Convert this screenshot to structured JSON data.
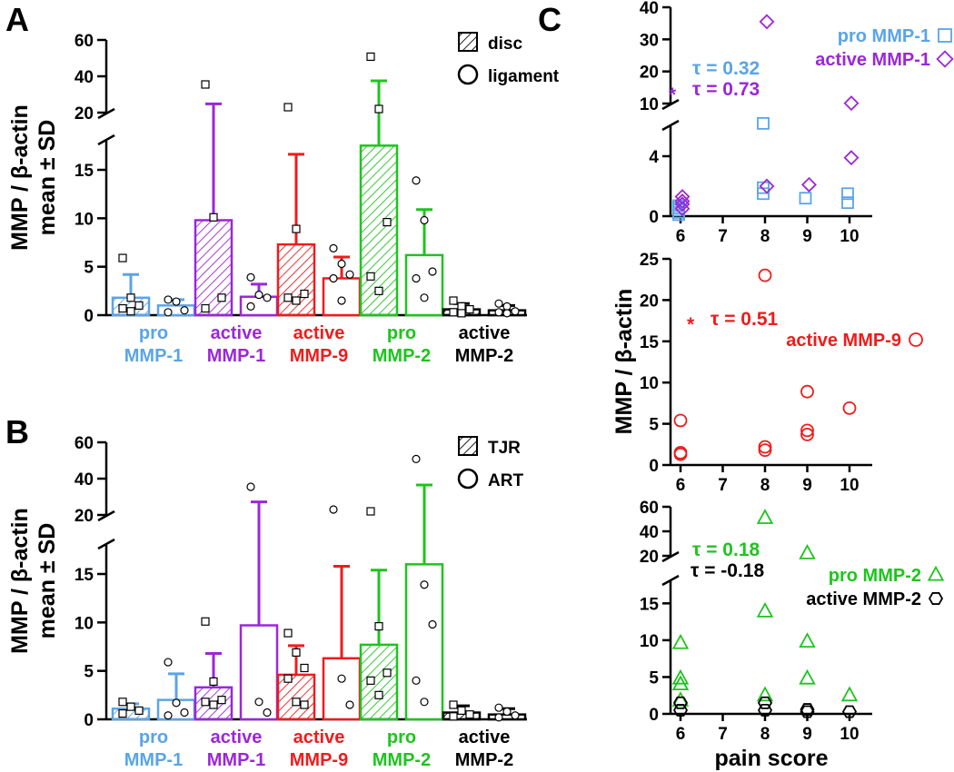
{
  "chart_data": [
    {
      "panel": "A",
      "type": "bar",
      "ylabel": "MMP / β-actin",
      "ylabel_sub": "mean ± SD",
      "y_ticks_low": [
        "0",
        "5",
        "10",
        "15"
      ],
      "y_ticks_high": [
        "20",
        "40",
        "60"
      ],
      "legend": [
        {
          "symbol": "hatch",
          "label": "disc"
        },
        {
          "symbol": "circle",
          "label": "ligament"
        }
      ],
      "groups": [
        {
          "line1": "pro",
          "line2": "MMP-1",
          "color": "#5aa4e8",
          "bars": [
            {
              "kind": "disc",
              "mean": 1.8,
              "sd": 2.4,
              "points": [
                5.9,
                1.8,
                1.0,
                0.7,
                0.4
              ]
            },
            {
              "kind": "ligament",
              "mean": 1.0,
              "sd": 0.6,
              "points": [
                1.6,
                1.4,
                0.5,
                0.3
              ]
            }
          ]
        },
        {
          "line1": "active",
          "line2": "MMP-1",
          "color": "#9b27d8",
          "bars": [
            {
              "kind": "disc",
              "mean": 9.8,
              "sd": 15.0,
              "points": [
                35.5,
                10.1,
                1.8,
                0.7
              ]
            },
            {
              "kind": "ligament",
              "mean": 1.9,
              "sd": 1.3,
              "points": [
                3.9,
                2.1,
                1.8,
                0.9
              ]
            }
          ]
        },
        {
          "line1": "active",
          "line2": "MMP-9",
          "color": "#ee1c1c",
          "bars": [
            {
              "kind": "disc",
              "mean": 7.3,
              "sd": 9.3,
              "points": [
                23.0,
                8.9,
                2.2,
                1.8,
                1.5
              ]
            },
            {
              "kind": "ligament",
              "mean": 3.8,
              "sd": 2.2,
              "points": [
                6.9,
                5.3,
                4.2,
                3.8,
                1.5
              ]
            }
          ]
        },
        {
          "line1": "pro",
          "line2": "MMP-2",
          "color": "#1ec41e",
          "bars": [
            {
              "kind": "disc",
              "mean": 17.5,
              "sd": 20.0,
              "points": [
                50.8,
                22.0,
                9.6,
                4.0,
                2.5
              ]
            },
            {
              "kind": "ligament",
              "mean": 6.2,
              "sd": 4.7,
              "points": [
                13.9,
                9.8,
                4.5,
                3.8,
                1.8
              ]
            }
          ]
        },
        {
          "line1": "active",
          "line2": "MMP-2",
          "color": "#000000",
          "bars": [
            {
              "kind": "disc",
              "mean": 0.6,
              "sd": 0.6,
              "points": [
                1.5,
                0.9,
                0.6,
                0.3,
                0.2
              ]
            },
            {
              "kind": "ligament",
              "mean": 0.5,
              "sd": 0.5,
              "points": [
                1.2,
                0.9,
                0.4,
                0.3,
                0.2
              ]
            }
          ]
        }
      ]
    },
    {
      "panel": "B",
      "type": "bar",
      "ylabel": "MMP / β-actin",
      "ylabel_sub": "mean ± SD",
      "y_ticks_low": [
        "0",
        "5",
        "10",
        "15"
      ],
      "y_ticks_high": [
        "20",
        "40",
        "60"
      ],
      "legend": [
        {
          "symbol": "hatch",
          "label": "TJR"
        },
        {
          "symbol": "circle",
          "label": "ART"
        }
      ],
      "groups": [
        {
          "line1": "pro",
          "line2": "MMP-1",
          "color": "#5aa4e8",
          "bars": [
            {
              "kind": "TJR",
              "mean": 1.1,
              "sd": 0.5,
              "points": [
                1.8,
                1.3,
                0.9,
                0.6
              ]
            },
            {
              "kind": "ART",
              "mean": 2.0,
              "sd": 2.7,
              "points": [
                5.9,
                1.7,
                0.7,
                0.4
              ]
            }
          ]
        },
        {
          "line1": "active",
          "line2": "MMP-1",
          "color": "#9b27d8",
          "bars": [
            {
              "kind": "TJR",
              "mean": 3.3,
              "sd": 3.5,
              "points": [
                10.1,
                3.9,
                2.0,
                1.8,
                1.5
              ]
            },
            {
              "kind": "ART",
              "mean": 9.7,
              "sd": 17.5,
              "points": [
                35.5,
                1.8,
                0.7
              ]
            }
          ]
        },
        {
          "line1": "active",
          "line2": "MMP-9",
          "color": "#ee1c1c",
          "bars": [
            {
              "kind": "TJR",
              "mean": 4.6,
              "sd": 3.0,
              "points": [
                8.9,
                6.9,
                5.3,
                4.2,
                1.8,
                1.5
              ]
            },
            {
              "kind": "ART",
              "mean": 6.3,
              "sd": 9.5,
              "points": [
                23.0,
                4.2,
                1.5
              ]
            }
          ]
        },
        {
          "line1": "pro",
          "line2": "MMP-2",
          "color": "#1ec41e",
          "bars": [
            {
              "kind": "TJR",
              "mean": 7.7,
              "sd": 7.7,
              "points": [
                22.0,
                9.6,
                4.8,
                4.0,
                2.5
              ]
            },
            {
              "kind": "ART",
              "mean": 16.0,
              "sd": 20.5,
              "points": [
                50.8,
                13.9,
                9.8,
                4.0,
                1.8
              ]
            }
          ]
        },
        {
          "line1": "active",
          "line2": "MMP-2",
          "color": "#000000",
          "bars": [
            {
              "kind": "TJR",
              "mean": 0.7,
              "sd": 0.7,
              "points": [
                1.5,
                0.9,
                0.5,
                0.3
              ]
            },
            {
              "kind": "ART",
              "mean": 0.5,
              "sd": 0.6,
              "points": [
                1.2,
                0.8,
                0.4,
                0.2
              ]
            }
          ]
        }
      ]
    },
    {
      "panel": "C",
      "type": "scatter",
      "xlabel": "pain score",
      "ylabel": "MMP / β-actin",
      "x_ticks": [
        "6",
        "7",
        "8",
        "9",
        "10"
      ],
      "subplots": [
        {
          "y_ticks_low": [
            "0",
            "4"
          ],
          "y_ticks_high": [
            "10",
            "20",
            "30",
            "40"
          ],
          "series": [
            {
              "name": "pro MMP-1",
              "marker": "square",
              "color": "#5aa4e8",
              "points": [
                [
                  6,
                  0.1
                ],
                [
                  6,
                  0.25
                ],
                [
                  6,
                  0.4
                ],
                [
                  6,
                  0.55
                ],
                [
                  6,
                  0.7
                ],
                [
                  8,
                  6.5
                ],
                [
                  8,
                  1.9
                ],
                [
                  8,
                  1.5
                ],
                [
                  9,
                  1.2
                ],
                [
                  10,
                  1.5
                ],
                [
                  10,
                  0.9
                ]
              ]
            },
            {
              "name": "active MMP-1",
              "marker": "diamond",
              "color": "#9b27d8",
              "points": [
                [
                  6,
                  1.3
                ],
                [
                  6,
                  1.0
                ],
                [
                  6,
                  0.8
                ],
                [
                  6,
                  0.5
                ],
                [
                  8,
                  35.5
                ],
                [
                  8,
                  2.0
                ],
                [
                  9,
                  2.1
                ],
                [
                  10,
                  10.1
                ],
                [
                  10,
                  3.9
                ]
              ]
            }
          ],
          "annotations": [
            {
              "text": "τ = 0.32",
              "color": "#5aa4e8",
              "star": false
            },
            {
              "text": "τ = 0.73",
              "color": "#9b27d8",
              "star": true
            }
          ]
        },
        {
          "y_ticks": [
            "0",
            "5",
            "10",
            "15",
            "20",
            "25"
          ],
          "series": [
            {
              "name": "active MMP-9",
              "marker": "circle",
              "color": "#ee1c1c",
              "points": [
                [
                  6,
                  5.4
                ],
                [
                  6,
                  1.5
                ],
                [
                  6,
                  1.3
                ],
                [
                  8,
                  23.0
                ],
                [
                  8,
                  2.2
                ],
                [
                  8,
                  1.8
                ],
                [
                  9,
                  8.9
                ],
                [
                  9,
                  4.2
                ],
                [
                  9,
                  3.7
                ],
                [
                  10,
                  6.9
                ]
              ]
            }
          ],
          "annotations": [
            {
              "text": "τ = 0.51",
              "color": "#ee1c1c",
              "star": true
            }
          ]
        },
        {
          "y_ticks_low": [
            "0",
            "5",
            "10",
            "15"
          ],
          "y_ticks_high": [
            "20",
            "40",
            "60"
          ],
          "series": [
            {
              "name": "pro MMP-2",
              "marker": "triangle",
              "color": "#1ec41e",
              "points": [
                [
                  6,
                  9.6
                ],
                [
                  6,
                  4.8
                ],
                [
                  6,
                  4.0
                ],
                [
                  6,
                  1.8
                ],
                [
                  8,
                  50.8
                ],
                [
                  8,
                  13.9
                ],
                [
                  8,
                  2.5
                ],
                [
                  9,
                  22.0
                ],
                [
                  9,
                  9.8
                ],
                [
                  9,
                  4.8
                ],
                [
                  10,
                  2.5
                ]
              ]
            },
            {
              "name": "active MMP-2",
              "marker": "hexagon",
              "color": "#000000",
              "points": [
                [
                  6,
                  1.5
                ],
                [
                  6,
                  0.5
                ],
                [
                  8,
                  1.5
                ],
                [
                  8,
                  0.5
                ],
                [
                  9,
                  0.6
                ],
                [
                  9,
                  0.3
                ],
                [
                  10,
                  0.3
                ]
              ]
            }
          ],
          "annotations": [
            {
              "text": "τ = 0.18",
              "color": "#1ec41e",
              "star": false
            },
            {
              "text": "τ = -0.18",
              "color": "#000000",
              "star": false
            }
          ]
        }
      ]
    }
  ]
}
